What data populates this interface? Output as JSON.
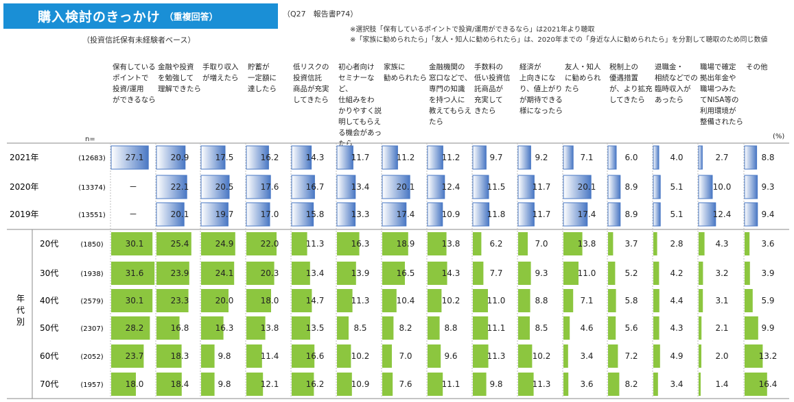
{
  "title": {
    "main": "購入検討のきっかけ",
    "sub": "（重複回答）"
  },
  "ref": "（Q27　報告書P74）",
  "notes": [
    "※選択肢「保有しているポイントで投資/運用ができるなら」は2021年より聴取",
    "※「家族に勧められたら」「友人・知人に勧められたら」は、2020年までの「身近な人に勧められたら」を分割して聴取のため同じ数値"
  ],
  "base": "（投資信託保有未経験者ベース）",
  "n_label": "n=",
  "unit": "(%)",
  "group_label": "年\n代\n別",
  "colors": {
    "blue": "#4a78c4",
    "green": "#8cc63f",
    "title_bg": "#1a8fd6"
  },
  "chart_data": {
    "type": "table",
    "categories": [
      "保有している\nポイントで\n投資/運用\nができるなら",
      "金融や投資\nを勉強して\n理解できたら",
      "手取り収入\nが増えたら",
      "貯蓄が\n一定額に\n達したら",
      "低リスクの\n投資信託\n商品が充実\nしてきたら",
      "初心者向け\nセミナーなど、\n仕組みをわ\nかりやすく説\n明してもらえ\nる機会があっ\nたら",
      "家族に\n勧められたら",
      "金融機関の\n窓口などで、\n専門の知識\nを持つ人に\n教えてもらえ\nたら",
      "手数料の\n低い投資信\n託商品が\n充実して\nきたら",
      "経済が\n上向きにな\nり、値上がり\nが期待できる\n様になったら",
      "友人・知人\nに勧められ\nたら",
      "税制上の\n優遇措置\nが、より拡充\nしてきたら",
      "退職金・\n相続などでの\n臨時収入が\nあったら",
      "職場で確定\n拠出年金や\n職場つみた\nてNISA等の\n利用環境が\n整備されたら",
      "その他"
    ],
    "series": [
      {
        "name": "2021年",
        "n": "(12683)",
        "color": "blue",
        "values": [
          27.1,
          20.9,
          17.5,
          16.2,
          14.3,
          11.7,
          11.2,
          11.2,
          9.7,
          9.2,
          7.1,
          6.0,
          4.0,
          2.7,
          8.8
        ]
      },
      {
        "name": "2020年",
        "n": "(13374)",
        "color": "blue",
        "values": [
          null,
          22.1,
          20.5,
          17.6,
          16.7,
          13.4,
          20.1,
          12.4,
          11.5,
          11.7,
          20.1,
          8.9,
          5.1,
          10.0,
          9.3
        ]
      },
      {
        "name": "2019年",
        "n": "(13551)",
        "color": "blue",
        "values": [
          null,
          20.1,
          19.7,
          17.0,
          15.8,
          13.3,
          17.4,
          10.9,
          11.8,
          11.7,
          17.4,
          8.9,
          5.1,
          12.4,
          9.4
        ]
      },
      {
        "name": "20代",
        "n": "(1850)",
        "color": "green",
        "values": [
          30.1,
          25.4,
          24.9,
          22.0,
          11.3,
          16.3,
          18.9,
          13.8,
          6.2,
          7.0,
          13.8,
          3.7,
          2.8,
          4.3,
          3.6
        ]
      },
      {
        "name": "30代",
        "n": "(1938)",
        "color": "green",
        "values": [
          31.6,
          23.9,
          24.1,
          20.3,
          13.4,
          13.9,
          16.5,
          14.3,
          7.7,
          9.3,
          11.0,
          5.2,
          4.2,
          3.2,
          3.9
        ]
      },
      {
        "name": "40代",
        "n": "(2579)",
        "color": "green",
        "values": [
          30.1,
          23.3,
          20.0,
          18.0,
          14.7,
          11.3,
          10.4,
          10.2,
          11.0,
          8.8,
          7.1,
          5.8,
          4.4,
          3.1,
          5.9
        ]
      },
      {
        "name": "50代",
        "n": "(2307)",
        "color": "green",
        "values": [
          28.2,
          16.8,
          16.3,
          13.8,
          13.5,
          8.5,
          8.2,
          8.8,
          11.1,
          8.5,
          4.6,
          5.6,
          4.3,
          2.1,
          9.9
        ]
      },
      {
        "name": "60代",
        "n": "(2052)",
        "color": "green",
        "values": [
          23.7,
          18.3,
          9.8,
          11.4,
          16.6,
          10.2,
          7.0,
          9.6,
          11.3,
          10.2,
          3.4,
          7.2,
          4.9,
          2.0,
          13.2
        ]
      },
      {
        "name": "70代",
        "n": "(1957)",
        "color": "green",
        "values": [
          18.0,
          18.4,
          9.8,
          12.1,
          16.2,
          10.9,
          7.6,
          11.1,
          9.8,
          11.3,
          3.6,
          8.2,
          3.4,
          1.4,
          16.4
        ]
      }
    ],
    "missing_label": "－",
    "value_max": 32
  }
}
